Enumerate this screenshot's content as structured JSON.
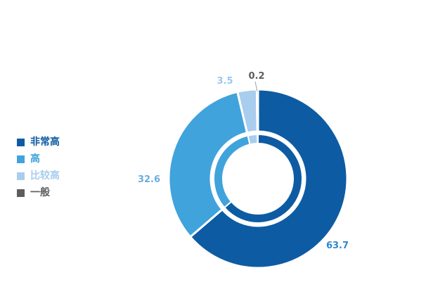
{
  "chart_data": {
    "type": "pie",
    "variant": "donut",
    "categories": [
      "非常高",
      "高",
      "比较高",
      "一般"
    ],
    "values": [
      63.7,
      32.6,
      3.5,
      0.2
    ],
    "colors": [
      "#0d5ba3",
      "#40a3dc",
      "#a9cdee",
      "#5d5d5d"
    ],
    "label_colors": [
      "#2f89cf",
      "#6aaedd",
      "#9cc8ee",
      "#5d5d5d"
    ],
    "legend": "left",
    "title": ""
  }
}
